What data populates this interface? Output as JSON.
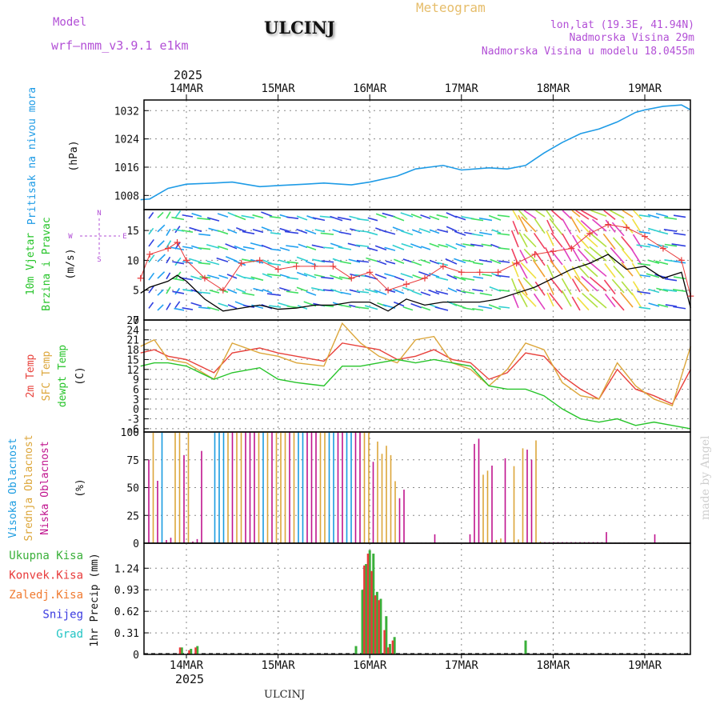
{
  "header": {
    "model_label": "Model",
    "model_name": "wrf—nmm_v3.9.1 e1km",
    "station": "ULCINJ",
    "product": "Meteogram",
    "lonlat": "lon,lat (19.3E, 41.94N)",
    "elevation": "Nadmorska Visina 29m",
    "model_elevation": "Nadmorska Visina u modelu 18.0455m",
    "footer_station": "ULCINJ",
    "credit": "made by Angel"
  },
  "colors": {
    "pressure": "#1e9be6",
    "temp2m": "#e8423c",
    "sfc_temp": "#dca63a",
    "dewpt": "#27c42a",
    "visoka": "#1a9be0",
    "srednja": "#dca63a",
    "niska": "#c0148e",
    "ukupna": "#3ab03a",
    "konvek": "#e83a3a",
    "zaledj": "#f07a30",
    "snijeg": "#3a3ae0",
    "grad": "#22c4c4",
    "wind_speed": "#000000",
    "gust": "#e83a3a",
    "title_purple": "#b24fd6",
    "meteogram_gold": "#e6bd6a"
  },
  "chart_data": [
    {
      "type": "line",
      "panel": "pressure",
      "ylabel": [
        "Pritisak na nivou mora",
        "(hPa)"
      ],
      "yticks": [
        1008,
        1016,
        1024,
        1032
      ],
      "ylim": [
        1004,
        1035
      ],
      "top_axis": {
        "year": "2025",
        "labels": [
          "14MAR",
          "15MAR",
          "16MAR",
          "17MAR",
          "18MAR",
          "19MAR"
        ]
      },
      "x_days": [
        -0.5,
        -0.4,
        -0.3,
        -0.2,
        0.0,
        0.3,
        0.5,
        0.8,
        1.0,
        1.3,
        1.5,
        1.8,
        2.0,
        2.3,
        2.5,
        2.8,
        3.0,
        3.3,
        3.5,
        3.7,
        3.9,
        4.1,
        4.3,
        4.5,
        4.7,
        4.9,
        5.0,
        5.2,
        5.4,
        5.5
      ],
      "series": [
        {
          "values": [
            1006.8,
            1007,
            1008.5,
            1010,
            1011.2,
            1011.5,
            1011.8,
            1010.5,
            1010.8,
            1011.2,
            1011.5,
            1011,
            1011.8,
            1013.5,
            1015.5,
            1016.5,
            1015.2,
            1015.8,
            1015.5,
            1016.5,
            1020,
            1023,
            1025.5,
            1026.8,
            1028.8,
            1031.5,
            1032.2,
            1033.2,
            1033.6,
            1032.2
          ]
        }
      ]
    },
    {
      "type": "line",
      "panel": "wind",
      "ylabel": [
        "10m Vjetar",
        "Brzina i Pravac",
        "(m/s)"
      ],
      "compass": {
        "n": "N",
        "e": "E",
        "w": "W",
        "s": "S"
      },
      "yticks": [
        0,
        5,
        10,
        15
      ],
      "ylim": [
        0,
        18.5
      ],
      "x_days": [
        -0.5,
        -0.4,
        -0.2,
        -0.1,
        0.0,
        0.2,
        0.4,
        0.6,
        0.8,
        1.0,
        1.2,
        1.4,
        1.6,
        1.8,
        2.0,
        2.2,
        2.4,
        2.6,
        2.8,
        3.0,
        3.2,
        3.4,
        3.6,
        3.8,
        4.0,
        4.2,
        4.4,
        4.6,
        4.8,
        5.0,
        5.2,
        5.4,
        5.5
      ],
      "series": [
        {
          "values": [
            4.5,
            5.5,
            6.5,
            7.5,
            6.5,
            3.5,
            1.5,
            2,
            2.5,
            1.8,
            2,
            2.5,
            2.5,
            3,
            3,
            1.5,
            3.5,
            2.5,
            3,
            3,
            3,
            3.5,
            4.5,
            5.5,
            7,
            8.5,
            9.5,
            11,
            8.5,
            9,
            7,
            8,
            2
          ]
        },
        {
          "name_key": "gust",
          "values": [
            7,
            11,
            12,
            13,
            10,
            7,
            5,
            9.5,
            10,
            8.5,
            9,
            9,
            9,
            7,
            8,
            5,
            6,
            7,
            9,
            8,
            8,
            8,
            9.5,
            11,
            11.5,
            12,
            14.5,
            16,
            15.5,
            14,
            12,
            10,
            4
          ]
        }
      ]
    },
    {
      "type": "line",
      "panel": "temperature",
      "ylabel": [
        "2m Temp",
        "SFC Temp",
        "dewpt Temp",
        "(C)"
      ],
      "yticks": [
        -6,
        -3,
        0,
        3,
        6,
        9,
        12,
        15,
        18,
        21,
        24,
        27
      ],
      "ylim": [
        -7,
        27
      ],
      "x_days": [
        -0.5,
        -0.35,
        -0.2,
        0.0,
        0.3,
        0.5,
        0.8,
        1.0,
        1.2,
        1.5,
        1.7,
        1.9,
        2.1,
        2.3,
        2.5,
        2.7,
        2.9,
        3.1,
        3.3,
        3.5,
        3.7,
        3.9,
        4.1,
        4.3,
        4.5,
        4.7,
        4.9,
        5.1,
        5.3,
        5.5
      ],
      "series": [
        {
          "key": "temp2m",
          "values": [
            17,
            18,
            16,
            15,
            11,
            17,
            18.5,
            17,
            16,
            14.5,
            20,
            19,
            18,
            15,
            16,
            18,
            15,
            14,
            9,
            11,
            17,
            16,
            10,
            6,
            3,
            12,
            6,
            4,
            1.5,
            12
          ]
        },
        {
          "key": "sfc",
          "values": [
            19,
            21,
            15,
            14,
            9,
            20,
            17,
            16,
            14,
            13,
            26,
            20,
            16,
            14,
            21,
            22,
            14,
            12,
            7,
            12,
            20,
            18,
            8,
            4,
            3,
            14,
            7,
            3,
            1,
            19
          ]
        },
        {
          "key": "dewpt",
          "values": [
            13,
            14,
            14,
            13,
            9,
            11,
            12.5,
            9,
            8,
            7,
            13,
            13,
            14,
            15,
            14,
            15,
            14,
            13,
            7,
            6,
            6,
            4,
            0,
            -3,
            -4,
            -3,
            -5,
            -4,
            -5,
            -6
          ]
        }
      ]
    },
    {
      "type": "bar",
      "panel": "clouds",
      "ylabel": [
        "Visoka Oblacnost",
        "Srednja Oblacnost",
        "Niska Oblacnost",
        "(%)"
      ],
      "yticks": [
        0,
        25,
        50,
        75,
        100
      ],
      "ylim": [
        0,
        100
      ]
    },
    {
      "type": "bar",
      "panel": "precip",
      "ylabel": "1hr Precip (mm)",
      "legend": [
        "Ukupna Kisa",
        "Konvek.Kisa",
        "Zaledj.Kisa",
        "Snijeg",
        "Grad"
      ],
      "yticks": [
        0,
        0.31,
        0.62,
        0.93,
        1.24
      ],
      "ylim": [
        0,
        1.6
      ],
      "bottom_axis": {
        "year": "2025",
        "labels": [
          "14MAR",
          "15MAR",
          "16MAR",
          "17MAR",
          "18MAR",
          "19MAR"
        ]
      },
      "bars": [
        {
          "x": -0.05,
          "total": 0.1,
          "conv": 0.1
        },
        {
          "x": 0.05,
          "total": 0.08,
          "conv": 0.06
        },
        {
          "x": 0.12,
          "total": 0.12,
          "conv": 0.1
        },
        {
          "x": 1.85,
          "total": 0.12,
          "conv": 0
        },
        {
          "x": 1.92,
          "total": 0.93,
          "conv": 0
        },
        {
          "x": 1.96,
          "total": 1.3,
          "conv": 1.28
        },
        {
          "x": 2.0,
          "total": 1.5,
          "conv": 1.45
        },
        {
          "x": 2.04,
          "total": 1.45,
          "conv": 1.2
        },
        {
          "x": 2.08,
          "total": 0.9,
          "conv": 0.85
        },
        {
          "x": 2.12,
          "total": 0.8,
          "conv": 0.78
        },
        {
          "x": 2.18,
          "total": 0.55,
          "conv": 0.35
        },
        {
          "x": 2.22,
          "total": 0.15,
          "conv": 0.1
        },
        {
          "x": 2.27,
          "total": 0.25,
          "conv": 0.2
        },
        {
          "x": 3.7,
          "total": 0.2,
          "conv": 0
        }
      ]
    }
  ]
}
